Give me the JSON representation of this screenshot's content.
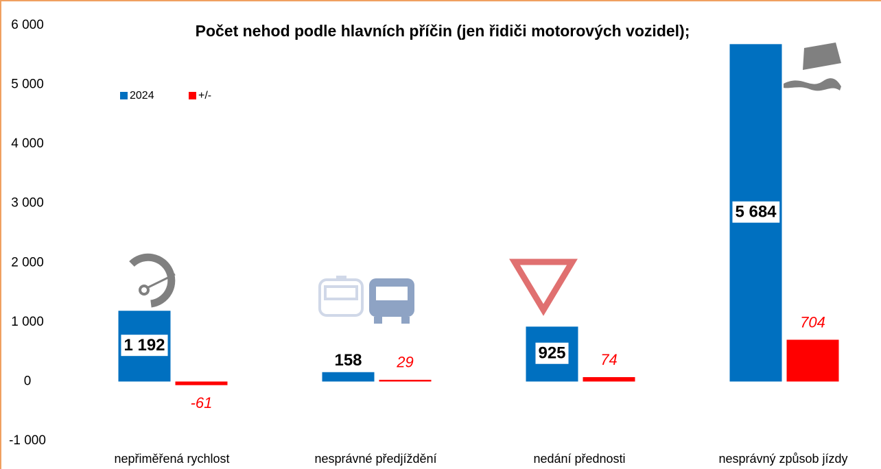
{
  "chart_data": {
    "type": "bar",
    "title": "Počet nehod podle hlavních příčin (jen řidiči motorových vozidel);",
    "categories": [
      "nepřiměřená rychlost",
      "nesprávné předjíždění",
      "nedání přednosti",
      "nesprávný způsob jízdy"
    ],
    "series": [
      {
        "name": "2024",
        "color": "#0070c0",
        "values": [
          1192,
          158,
          925,
          5684
        ],
        "value_labels": [
          "1 192",
          "158",
          "925",
          "5 684"
        ]
      },
      {
        "name": "+/-",
        "color": "#ff0000",
        "values": [
          -61,
          29,
          74,
          704
        ]
      }
    ],
    "ylim": [
      -1000,
      6000
    ],
    "yticks": [
      {
        "value": -1000,
        "label": "-1 000"
      },
      0,
      {
        "value": 1000,
        "label": "1 000"
      },
      {
        "value": 2000,
        "label": "2 000"
      },
      {
        "value": 3000,
        "label": "3 000"
      },
      {
        "value": 4000,
        "label": "4 000"
      },
      {
        "value": 5000,
        "label": "5 000"
      },
      {
        "value": 6000,
        "label": "6 000"
      }
    ],
    "legend": "top-left"
  }
}
